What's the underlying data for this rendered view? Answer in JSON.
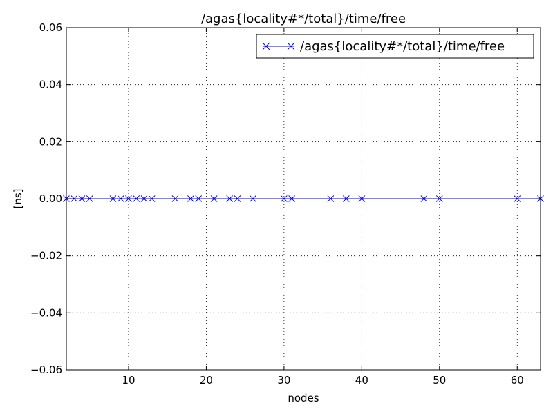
{
  "chart_data": {
    "type": "line",
    "title": "/agas{locality#*/total}/time/free",
    "xlabel": "nodes",
    "ylabel": "[ns]",
    "xlim": [
      2,
      63
    ],
    "ylim": [
      -0.06,
      0.06
    ],
    "x_ticks": [
      10,
      20,
      30,
      40,
      50,
      60
    ],
    "x_tick_labels": [
      "10",
      "20",
      "30",
      "40",
      "50",
      "60"
    ],
    "y_ticks": [
      -0.06,
      -0.04,
      -0.02,
      0.0,
      0.02,
      0.04,
      0.06
    ],
    "y_tick_labels": [
      "−0.06",
      "−0.04",
      "−0.02",
      "0.00",
      "0.02",
      "0.04",
      "0.06"
    ],
    "grid": true,
    "legend_position": "top-right",
    "series": [
      {
        "name": "/agas{locality#*/total}/time/free",
        "color": "#0000ff",
        "marker": "x",
        "x": [
          2,
          3,
          4,
          5,
          8,
          9,
          10,
          11,
          12,
          13,
          16,
          18,
          19,
          21,
          23,
          24,
          26,
          30,
          31,
          36,
          38,
          40,
          48,
          50,
          60,
          63
        ],
        "y": [
          0,
          0,
          0,
          0,
          0,
          0,
          0,
          0,
          0,
          0,
          0,
          0,
          0,
          0,
          0,
          0,
          0,
          0,
          0,
          0,
          0,
          0,
          0,
          0,
          0,
          0
        ]
      }
    ]
  }
}
